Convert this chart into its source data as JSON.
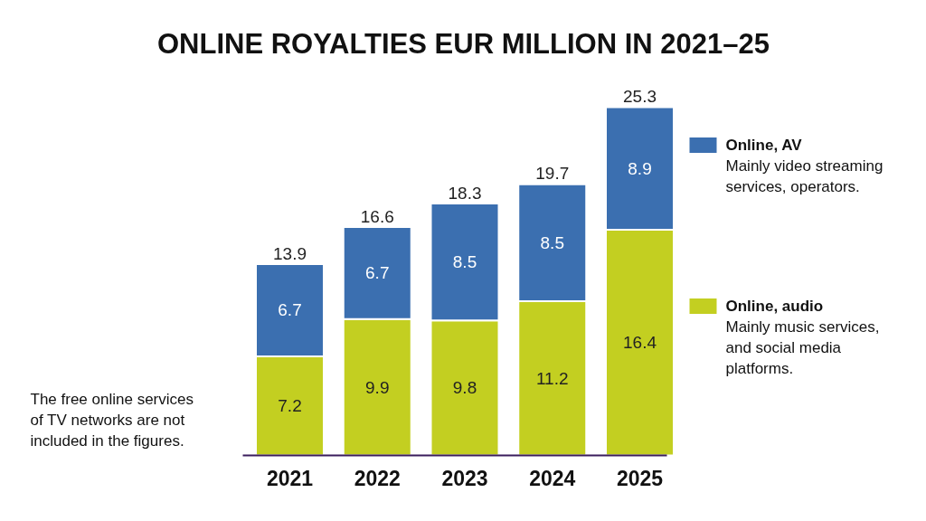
{
  "chart_data": {
    "type": "bar",
    "title": "ONLINE ROYALTIES EUR MILLION IN 2021–25",
    "categories": [
      "2021",
      "2022",
      "2023",
      "2024",
      "2025"
    ],
    "stacked": true,
    "data_labels": true,
    "legend": "right",
    "totals": [
      "13.9",
      "16.6",
      "18.3",
      "19.7",
      "25.3"
    ],
    "series": [
      {
        "name": "Online, audio",
        "color": "#c3cf21",
        "values": [
          7.2,
          9.9,
          9.8,
          11.2,
          16.4
        ]
      },
      {
        "name": "Online, AV",
        "color": "#3b6fb0",
        "values": [
          6.7,
          6.7,
          8.5,
          8.5,
          8.9
        ]
      }
    ],
    "annotations": [
      "The free online services of TV networks are not included in the figures.",
      "Mainly music services, and social media platforms.",
      "Mainly video streaming services, operators."
    ]
  }
}
